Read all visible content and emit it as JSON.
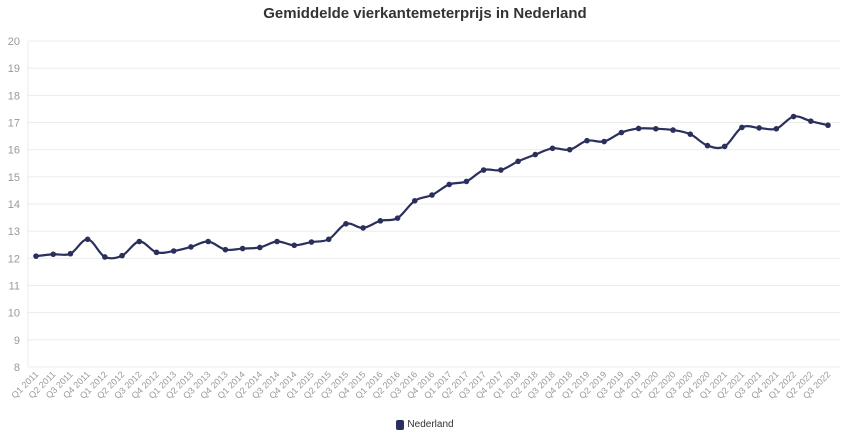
{
  "chart_data": {
    "type": "line",
    "title": "Gemiddelde vierkantemeterprijs in Nederland",
    "xlabel": "",
    "ylabel": "",
    "ylim": [
      8,
      20
    ],
    "yticks": [
      8,
      9,
      10,
      11,
      12,
      13,
      14,
      15,
      16,
      17,
      18,
      19,
      20
    ],
    "grid": true,
    "legend_position": "bottom",
    "categories": [
      "Q1 2011",
      "Q2 2011",
      "Q3 2011",
      "Q4 2011",
      "Q1 2012",
      "Q2 2012",
      "Q3 2012",
      "Q4 2012",
      "Q1 2013",
      "Q2 2013",
      "Q3 2013",
      "Q4 2013",
      "Q1 2014",
      "Q2 2014",
      "Q3 2014",
      "Q4 2014",
      "Q1 2015",
      "Q2 2015",
      "Q3 2015",
      "Q4 2015",
      "Q1 2016",
      "Q2 2016",
      "Q3 2016",
      "Q4 2016",
      "Q1 2017",
      "Q2 2017",
      "Q3 2017",
      "Q4 2017",
      "Q1 2018",
      "Q2 2018",
      "Q3 2018",
      "Q4 2018",
      "Q1 2019",
      "Q2 2019",
      "Q3 2019",
      "Q4 2019",
      "Q1 2020",
      "Q2 2020",
      "Q3 2020",
      "Q4 2020",
      "Q1 2021",
      "Q2 2021",
      "Q3 2021",
      "Q4 2021",
      "Q1 2022",
      "Q2 2022",
      "Q3 2022"
    ],
    "series": [
      {
        "name": "Nederland",
        "color": "#2a2f5b",
        "values": [
          12.08,
          12.15,
          12.17,
          12.7,
          12.05,
          12.1,
          12.62,
          12.22,
          12.27,
          12.42,
          12.62,
          12.32,
          12.36,
          12.4,
          12.62,
          12.48,
          12.6,
          12.7,
          13.27,
          13.12,
          13.38,
          13.48,
          14.12,
          14.33,
          14.72,
          14.83,
          15.25,
          15.25,
          15.57,
          15.82,
          16.05,
          16.0,
          16.33,
          16.3,
          16.63,
          16.78,
          16.77,
          16.72,
          16.57,
          16.15,
          16.12,
          16.82,
          16.8,
          16.77,
          17.22,
          17.05,
          16.9
        ]
      }
    ]
  }
}
